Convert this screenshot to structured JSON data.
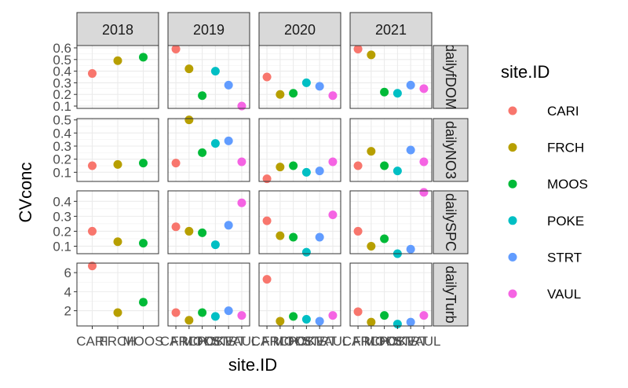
{
  "chart_data": {
    "type": "scatter",
    "facet_cols_label": [
      "2018",
      "2019",
      "2020",
      "2021"
    ],
    "facet_rows_label": [
      "dailyfDOM",
      "dailyNO3",
      "dailySPC",
      "dailyTurb"
    ],
    "xlabel": "site.ID",
    "ylabel": "CVconc",
    "legend_title": "site.ID",
    "legend_position": "right",
    "grid": true,
    "scales": "free",
    "series": [
      {
        "name": "CARI",
        "color": "#F8766D"
      },
      {
        "name": "FRCH",
        "color": "#B79F00"
      },
      {
        "name": "MOOS",
        "color": "#00BA38"
      },
      {
        "name": "POKE",
        "color": "#00BFC4"
      },
      {
        "name": "STRT",
        "color": "#619CFF"
      },
      {
        "name": "VAUL",
        "color": "#F564E3"
      }
    ],
    "x_categories": {
      "2018": [
        "CARI",
        "FRCH",
        "MOOS"
      ],
      "other": [
        "CARI",
        "FRCH",
        "MOOS",
        "POKE",
        "STRT",
        "VAUL"
      ]
    },
    "rows": [
      {
        "ylim": [
          0.08,
          0.62
        ],
        "yticks": [
          0.1,
          0.2,
          0.3,
          0.4,
          0.5,
          0.6
        ],
        "points": {
          "2018": [
            0.38,
            0.49,
            0.52
          ],
          "2019": [
            0.59,
            0.42,
            0.19,
            0.4,
            0.28,
            0.1
          ],
          "2020": [
            0.35,
            0.2,
            0.21,
            0.3,
            0.27,
            0.19
          ],
          "2021": [
            0.59,
            0.54,
            0.22,
            0.21,
            0.28,
            0.25
          ]
        }
      },
      {
        "ylim": [
          0.03,
          0.51
        ],
        "yticks": [
          0.1,
          0.2,
          0.3,
          0.4,
          0.5
        ],
        "points": {
          "2018": [
            0.15,
            0.16,
            0.17
          ],
          "2019": [
            0.17,
            0.5,
            0.25,
            0.32,
            0.34,
            0.18
          ],
          "2020": [
            0.05,
            0.14,
            0.15,
            0.1,
            0.11,
            0.18
          ],
          "2021": [
            0.15,
            0.26,
            0.15,
            0.11,
            0.27,
            0.18
          ]
        }
      },
      {
        "ylim": [
          0.05,
          0.47
        ],
        "yticks": [
          0.1,
          0.2,
          0.3,
          0.4
        ],
        "points": {
          "2018": [
            0.2,
            0.13,
            0.12
          ],
          "2019": [
            0.23,
            0.2,
            0.19,
            0.11,
            0.24,
            0.39
          ],
          "2020": [
            0.27,
            0.17,
            0.16,
            0.06,
            0.16,
            0.31
          ],
          "2021": [
            0.2,
            0.1,
            0.15,
            0.05,
            0.08,
            0.46
          ]
        }
      },
      {
        "ylim": [
          0.4,
          7.0
        ],
        "yticks": [
          2,
          4,
          6
        ],
        "points": {
          "2018": [
            6.7,
            1.8,
            2.9
          ],
          "2019": [
            1.8,
            1.0,
            1.8,
            1.4,
            2.0,
            1.5
          ],
          "2020": [
            5.3,
            0.9,
            1.4,
            1.1,
            0.9,
            1.5
          ],
          "2021": [
            1.9,
            0.8,
            1.5,
            0.6,
            0.8,
            1.5
          ]
        }
      }
    ]
  }
}
